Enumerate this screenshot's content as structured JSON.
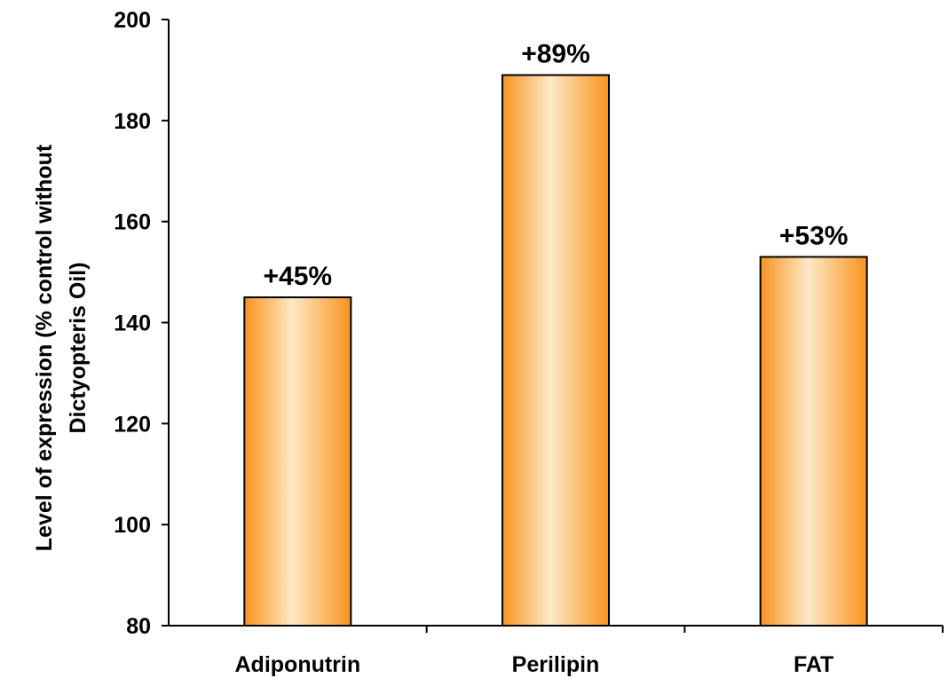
{
  "chart_data": {
    "type": "bar",
    "categories": [
      "Adiponutrin",
      "Perilipin",
      "FAT"
    ],
    "values": [
      145,
      189,
      153
    ],
    "data_labels": [
      "+45%",
      "+89%",
      "+53%"
    ],
    "title": "",
    "xlabel": "",
    "ylabel_lines": [
      "Level of expression (% control without",
      "Dictyopteris Oil)"
    ],
    "ylim": [
      80,
      200
    ],
    "yticks": [
      80,
      100,
      120,
      140,
      160,
      180,
      200
    ],
    "grid": false,
    "legend": "none",
    "colors": {
      "bar_edge": "#f7931e",
      "bar_center": "#fde9c6",
      "bar_outline": "#000000",
      "axis": "#000000"
    }
  }
}
